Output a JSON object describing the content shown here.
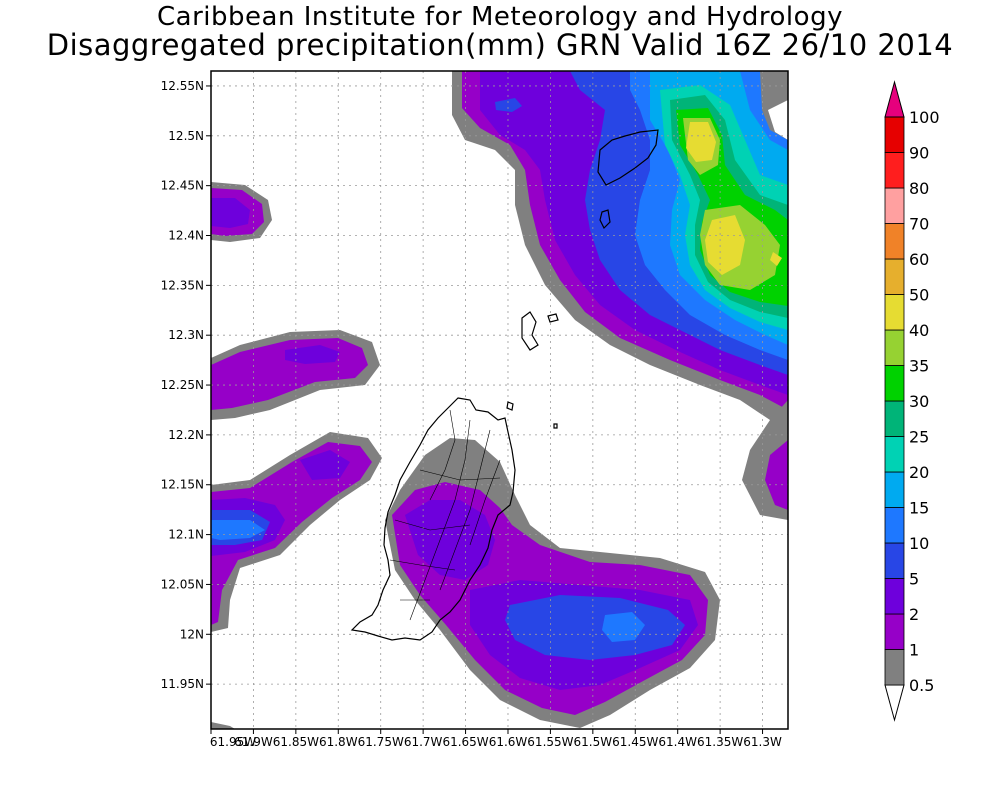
{
  "header": {
    "title_line1": "Caribbean Institute for Meteorology and Hydrology",
    "title_line2": "Disaggregated precipitation(mm) GRN Valid 16Z 26/10 2014"
  },
  "map": {
    "lat_ticks": [
      "12.55N",
      "12.5N",
      "12.45N",
      "12.4N",
      "12.35N",
      "12.3N",
      "12.25N",
      "12.2N",
      "12.15N",
      "12.1N",
      "12.05N",
      "12N",
      "11.95N"
    ],
    "lat_values": [
      12.55,
      12.5,
      12.45,
      12.4,
      12.35,
      12.3,
      12.25,
      12.2,
      12.15,
      12.1,
      12.05,
      12.0,
      11.95
    ],
    "lon_ticks": [
      "61.95W",
      "61.9W",
      "61.85W",
      "61.8W",
      "61.75W",
      "61.7W",
      "61.65W",
      "61.6W",
      "61.55W",
      "61.5W",
      "61.45W",
      "61.4W",
      "61.35W",
      "61.3W"
    ],
    "lon_values": [
      -61.95,
      -61.9,
      -61.85,
      -61.8,
      -61.75,
      -61.7,
      -61.65,
      -61.6,
      -61.55,
      -61.5,
      -61.45,
      -61.4,
      -61.35,
      -61.3
    ],
    "lat_range": [
      11.905,
      12.565
    ],
    "lon_range": [
      -61.95,
      -61.27
    ],
    "grid": true
  },
  "colorbar": {
    "levels": [
      "0.5",
      "1",
      "2",
      "5",
      "10",
      "15",
      "20",
      "25",
      "30",
      "35",
      "40",
      "50",
      "60",
      "70",
      "80",
      "90",
      "100"
    ],
    "colors": [
      "#808080",
      "#9600c8",
      "#6e00dc",
      "#2846e6",
      "#1e78ff",
      "#00aaf0",
      "#00d2b4",
      "#00b478",
      "#00d200",
      "#96d232",
      "#e6dc32",
      "#e6af2d",
      "#f08228",
      "#ffa0a0",
      "#ff1e1e",
      "#e60000",
      "#e6007d"
    ]
  }
}
